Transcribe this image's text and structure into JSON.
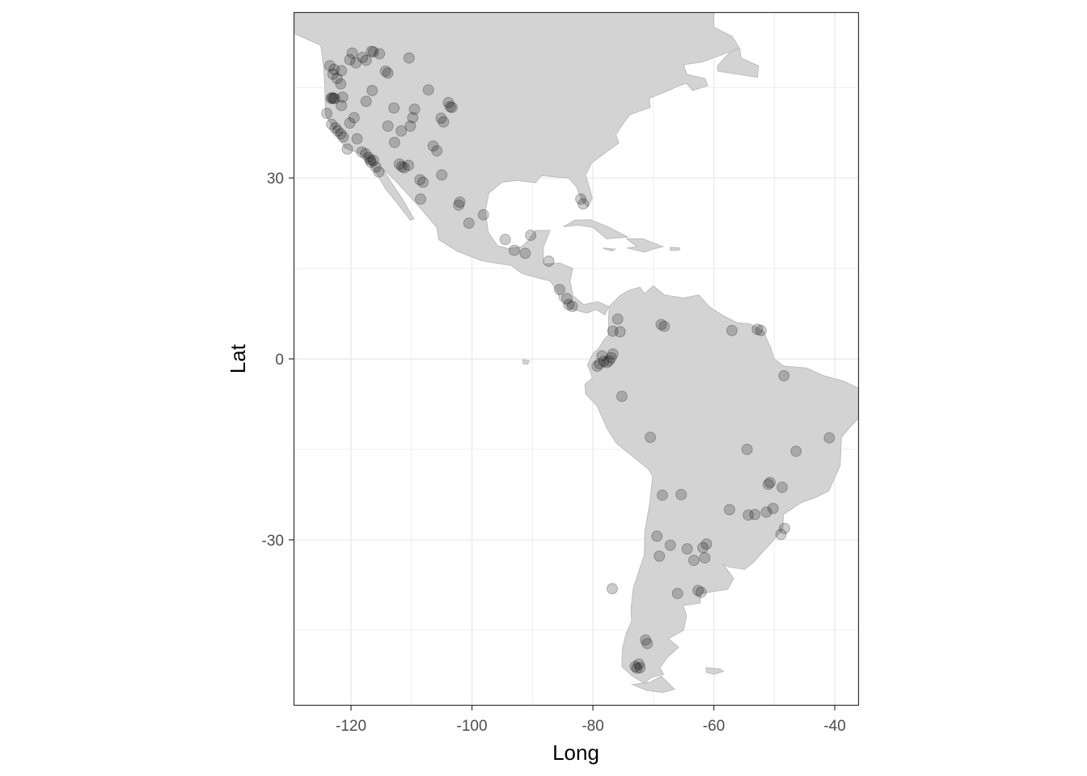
{
  "chart_data": {
    "type": "scatter",
    "title": "",
    "xlabel": "Long",
    "ylabel": "Lat",
    "xlim": [
      -129.5,
      -36.0
    ],
    "ylim": [
      -57.5,
      57.5
    ],
    "x_ticks": [
      -120,
      -100,
      -80,
      -60,
      -40
    ],
    "y_ticks": [
      30,
      0,
      -30
    ],
    "x_tick_labels": [
      "-120",
      "-100",
      "-80",
      "-60",
      "-40"
    ],
    "y_tick_labels": [
      "30",
      "0",
      "-30"
    ],
    "grid": true,
    "basemap": "Americas land polygons (light gray)",
    "colors": {
      "land": "#d3d3d3",
      "land_border": "#bdbdbd",
      "point": "#000000",
      "grid": "#ebebeb",
      "panel_border": "#333333"
    },
    "point_alpha": 0.2,
    "points": [
      [
        -123.5,
        48.6
      ],
      [
        -122.8,
        48.0
      ],
      [
        -123.0,
        47.2
      ],
      [
        -122.3,
        46.5
      ],
      [
        -121.7,
        45.6
      ],
      [
        -123.3,
        43.2
      ],
      [
        -122.9,
        43.2
      ],
      [
        -122.7,
        43.2
      ],
      [
        -123.1,
        43.3
      ],
      [
        -121.4,
        43.4
      ],
      [
        -121.6,
        42.0
      ],
      [
        -123.2,
        38.9
      ],
      [
        -122.6,
        38.3
      ],
      [
        -122.2,
        37.8
      ],
      [
        -121.7,
        37.3
      ],
      [
        -121.3,
        36.8
      ],
      [
        -118.2,
        34.3
      ],
      [
        -117.6,
        34.0
      ],
      [
        -117.1,
        33.4
      ],
      [
        -116.8,
        33.0
      ],
      [
        -116.3,
        32.9
      ],
      [
        -116.7,
        32.6
      ],
      [
        -115.9,
        31.8
      ],
      [
        -115.4,
        31.0
      ],
      [
        -112.0,
        32.3
      ],
      [
        -111.6,
        31.9
      ],
      [
        -111.2,
        31.7
      ],
      [
        -110.5,
        32.1
      ],
      [
        -108.6,
        29.7
      ],
      [
        -108.1,
        29.3
      ],
      [
        -111.7,
        37.8
      ],
      [
        -113.9,
        38.6
      ],
      [
        -112.8,
        35.9
      ],
      [
        -110.2,
        38.6
      ],
      [
        -109.8,
        40.0
      ],
      [
        -106.4,
        35.3
      ],
      [
        -105.8,
        34.5
      ],
      [
        -105.1,
        39.9
      ],
      [
        -104.7,
        39.3
      ],
      [
        -103.9,
        42.5
      ],
      [
        -103.6,
        41.8
      ],
      [
        -103.3,
        41.7
      ],
      [
        -107.2,
        44.6
      ],
      [
        -109.5,
        41.4
      ],
      [
        -114.3,
        47.7
      ],
      [
        -113.9,
        47.4
      ],
      [
        -110.4,
        49.9
      ],
      [
        -116.3,
        50.9
      ],
      [
        -115.3,
        50.6
      ],
      [
        -116.6,
        51.0
      ],
      [
        -118.1,
        50.0
      ],
      [
        -117.5,
        49.5
      ],
      [
        -116.5,
        44.5
      ],
      [
        -117.5,
        42.7
      ],
      [
        -119.5,
        40.0
      ],
      [
        -120.2,
        39.1
      ],
      [
        -124.0,
        40.7
      ],
      [
        -121.6,
        47.8
      ],
      [
        -120.2,
        49.6
      ],
      [
        -119.2,
        49.1
      ],
      [
        -119.8,
        50.7
      ],
      [
        -105.0,
        30.5
      ],
      [
        -108.5,
        26.5
      ],
      [
        -102.2,
        25.5
      ],
      [
        -102.0,
        26.0
      ],
      [
        -98.1,
        23.9
      ],
      [
        -100.5,
        22.5
      ],
      [
        -94.5,
        19.8
      ],
      [
        -93.0,
        18.0
      ],
      [
        -91.2,
        17.5
      ],
      [
        -85.5,
        11.5
      ],
      [
        -84.3,
        10.0
      ],
      [
        -84.0,
        9.0
      ],
      [
        -83.4,
        8.7
      ],
      [
        -90.3,
        20.5
      ],
      [
        -87.3,
        16.2
      ],
      [
        -82.0,
        26.5
      ],
      [
        -81.6,
        25.7
      ],
      [
        -75.9,
        6.6
      ],
      [
        -76.7,
        4.6
      ],
      [
        -75.5,
        4.5
      ],
      [
        -78.5,
        0.5
      ],
      [
        -78.2,
        -0.4
      ],
      [
        -77.7,
        -0.6
      ],
      [
        -77.3,
        -0.3
      ],
      [
        -77.0,
        0.2
      ],
      [
        -76.7,
        0.8
      ],
      [
        -78.9,
        -0.8
      ],
      [
        -79.3,
        -1.2
      ],
      [
        -75.2,
        -6.2
      ],
      [
        -68.7,
        5.7
      ],
      [
        -68.2,
        5.4
      ],
      [
        -57.0,
        4.7
      ],
      [
        -52.8,
        4.9
      ],
      [
        -52.2,
        4.7
      ],
      [
        -48.4,
        -2.8
      ],
      [
        -70.5,
        -13.0
      ],
      [
        -54.5,
        -15.0
      ],
      [
        -46.4,
        -15.3
      ],
      [
        -40.9,
        -13.1
      ],
      [
        -50.7,
        -20.5
      ],
      [
        -51.0,
        -20.8
      ],
      [
        -48.7,
        -21.3
      ],
      [
        -51.3,
        -25.4
      ],
      [
        -50.2,
        -24.8
      ],
      [
        -48.3,
        -28.1
      ],
      [
        -48.9,
        -29.1
      ],
      [
        -53.2,
        -25.8
      ],
      [
        -54.3,
        -25.9
      ],
      [
        -57.4,
        -25.0
      ],
      [
        -68.5,
        -22.6
      ],
      [
        -69.4,
        -29.4
      ],
      [
        -65.4,
        -22.5
      ],
      [
        -64.4,
        -31.5
      ],
      [
        -63.3,
        -33.4
      ],
      [
        -61.8,
        -31.3
      ],
      [
        -61.5,
        -33.0
      ],
      [
        -69.0,
        -32.7
      ],
      [
        -66.0,
        -38.9
      ],
      [
        -62.6,
        -38.4
      ],
      [
        -62.1,
        -38.7
      ],
      [
        -76.8,
        -38.1
      ],
      [
        -71.3,
        -46.6
      ],
      [
        -71.0,
        -47.2
      ],
      [
        -72.4,
        -50.6
      ],
      [
        -72.7,
        -51.3
      ],
      [
        -73.0,
        -51.0
      ],
      [
        -72.2,
        -51.2
      ],
      [
        -61.2,
        -30.7
      ],
      [
        -67.2,
        -30.9
      ],
      [
        -112.9,
        41.6
      ],
      [
        -119.0,
        36.5
      ],
      [
        -120.6,
        34.8
      ]
    ]
  }
}
